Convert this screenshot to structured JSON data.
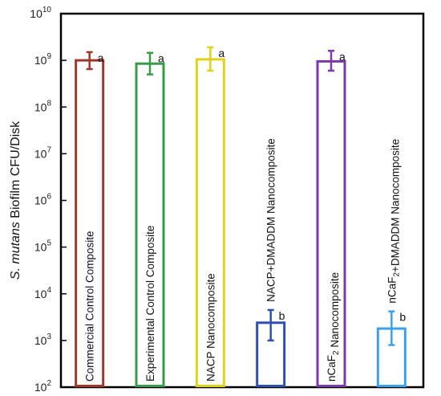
{
  "chart_data": {
    "type": "bar",
    "yscale": "log",
    "ylim": [
      100,
      10000000000
    ],
    "ytick_values": [
      100,
      1000,
      10000,
      100000,
      1000000,
      10000000,
      100000000,
      1000000000,
      10000000000
    ],
    "ytick_exponents": [
      "2",
      "3",
      "4",
      "5",
      "6",
      "7",
      "8",
      "9",
      "10"
    ],
    "ytick_base": "10",
    "ylabel": {
      "italic": "S. mutans",
      "rest": " Biofilm CFU/Disk"
    },
    "bars": [
      {
        "label_parts": [
          {
            "t": "Commercial Control Composite"
          }
        ],
        "value": 1000000000,
        "err_low": 650000000,
        "err_high": 1500000000,
        "sig": "a",
        "color": "#a0382a"
      },
      {
        "label_parts": [
          {
            "t": "Experimental Control Composite"
          }
        ],
        "value": 850000000,
        "err_low": 500000000,
        "err_high": 1450000000,
        "sig": "a",
        "color": "#3a9a48"
      },
      {
        "label_parts": [
          {
            "t": "NACP Nanocomposite"
          }
        ],
        "value": 1050000000,
        "err_low": 600000000,
        "err_high": 1900000000,
        "sig": "a",
        "color": "#e0d21a"
      },
      {
        "label_parts": [
          {
            "t": "NACP+DMADDM Nanocomposite"
          }
        ],
        "value": 2400,
        "err_low": 1000,
        "err_high": 4500,
        "sig": "b",
        "color": "#2e4fb0"
      },
      {
        "label_parts": [
          {
            "t": "nCaF"
          },
          {
            "t": "2",
            "sub": true
          },
          {
            "t": " Nanocomposite"
          }
        ],
        "value": 950000000,
        "err_low": 600000000,
        "err_high": 1600000000,
        "sig": "a",
        "color": "#7a3aa8"
      },
      {
        "label_parts": [
          {
            "t": "nCaF"
          },
          {
            "t": "2",
            "sub": true
          },
          {
            "t": "+DMADDM Nanocomposite"
          }
        ],
        "value": 1800,
        "err_low": 800,
        "err_high": 4200,
        "sig": "b",
        "color": "#3fa0ea"
      }
    ]
  }
}
